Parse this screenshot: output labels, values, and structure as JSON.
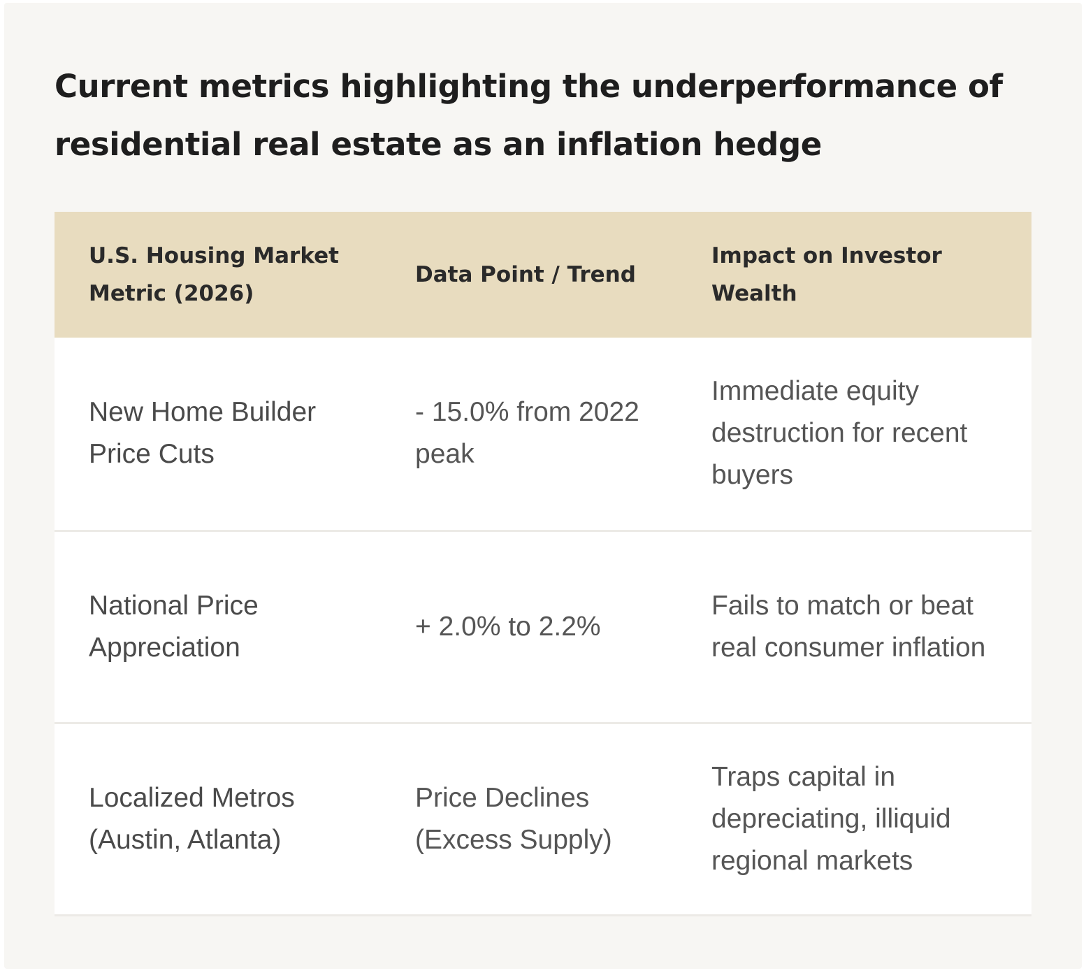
{
  "title": "Current metrics highlighting the underperformance of residential real estate as an inflation hedge",
  "table": {
    "headers": [
      "U.S. Housing Market Metric (2026)",
      "Data Point / Trend",
      "Impact on Investor Wealth"
    ],
    "rows": [
      {
        "metric": "New Home Builder Price Cuts",
        "value": "- 15.0% from 2022 peak",
        "impact": "Immediate equity destruction for recent buyers"
      },
      {
        "metric": "National Price Appreciation",
        "value": "+ 2.0% to 2.2%",
        "impact": "Fails to match or beat real consumer inflation"
      },
      {
        "metric": "Localized Metros (Austin, Atlanta)",
        "value": "Price Declines (Excess Supply)",
        "impact": "Traps capital in depreciating, illiquid regional markets"
      }
    ]
  },
  "colors": {
    "page_bg": "#f7f6f3",
    "header_bg": "#e8dcbf",
    "row_bg": "#ffffff",
    "title_text": "#1e1e1e",
    "body_text": "#4a4a4a"
  }
}
